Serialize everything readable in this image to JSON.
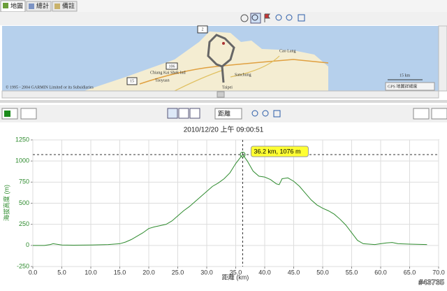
{
  "tabs": [
    "地圖",
    "總計",
    "備註"
  ],
  "map": {
    "labels": [
      "2",
      "106",
      "15",
      "Chiang Kai Shek Intl",
      "Taoyuan",
      "Sanchung",
      "Taipei",
      "Cao Lang"
    ],
    "copyright": "© 1995 - 2004 GARMIN Limited or its Subsidiaries",
    "scale": "15 km",
    "detail": "GPS 地圖詳細度"
  },
  "chart_toolbar": {
    "dropdown": "距離"
  },
  "chart_data": {
    "type": "line",
    "title": "2010/12/20 上午 09:00:51",
    "xlabel": "距離 (km)",
    "ylabel": "海拔高度 (m)",
    "color": "#2e8b2e",
    "grid": true,
    "x": [
      0,
      2,
      3,
      3.5,
      4,
      5,
      7,
      10,
      13,
      15,
      16,
      17,
      18,
      19,
      20,
      21,
      22,
      23,
      24,
      25,
      26,
      27,
      28,
      29,
      30,
      31,
      32,
      33,
      34,
      35,
      36.2,
      37,
      38,
      39,
      40,
      41,
      42,
      42.5,
      43,
      44,
      45,
      46,
      47,
      48,
      49,
      50,
      51,
      52,
      53,
      54,
      55,
      56,
      57,
      58,
      59,
      60,
      61,
      62,
      63,
      65,
      68
    ],
    "values": [
      0,
      0,
      10,
      20,
      15,
      5,
      3,
      5,
      10,
      20,
      40,
      70,
      110,
      150,
      200,
      220,
      235,
      250,
      290,
      350,
      410,
      460,
      520,
      580,
      640,
      700,
      740,
      790,
      860,
      970,
      1076,
      1000,
      880,
      820,
      810,
      780,
      730,
      720,
      790,
      800,
      760,
      700,
      620,
      540,
      480,
      440,
      410,
      370,
      310,
      240,
      150,
      60,
      20,
      15,
      10,
      20,
      30,
      35,
      20,
      15,
      10
    ],
    "xlim": [
      0,
      70
    ],
    "ylim": [
      -250,
      1250
    ],
    "xticks": [
      {
        "value": 0,
        "label": "0.0"
      },
      {
        "value": 5,
        "label": "5.0"
      },
      {
        "value": 10,
        "label": "10.0"
      },
      {
        "value": 15,
        "label": "15.0"
      },
      {
        "value": 20,
        "label": "20.0"
      },
      {
        "value": 25,
        "label": "25.0"
      },
      {
        "value": 30,
        "label": "30.0"
      },
      {
        "value": 35,
        "label": "35.0"
      },
      {
        "value": 40,
        "label": "40.0"
      },
      {
        "value": 45,
        "label": "45.0"
      },
      {
        "value": 50,
        "label": "50.0"
      },
      {
        "value": 55,
        "label": "55.0"
      },
      {
        "value": 60,
        "label": "60.0"
      },
      {
        "value": 65,
        "label": "65.0"
      },
      {
        "value": 70,
        "label": "70.0"
      }
    ],
    "yticks": [
      -250,
      0,
      250,
      500,
      750,
      1000,
      1250
    ],
    "annotation": {
      "text": "36.2 km, 1076 m",
      "x": 36.2,
      "y": 1076
    }
  },
  "watermark": "#43735"
}
